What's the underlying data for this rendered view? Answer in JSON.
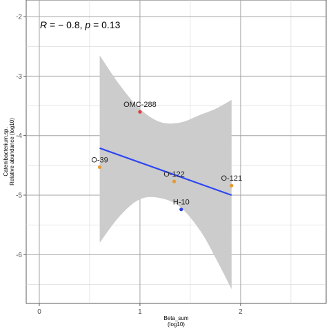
{
  "chart_data": {
    "type": "scatter",
    "xlabel_line1": "Beta_sum",
    "xlabel_line2": "(log10)",
    "ylabel_line1": "Catenibacterium.sp.",
    "ylabel_line2": "Relative abundance (log10)",
    "xlim": [
      -0.13,
      2.85
    ],
    "ylim": [
      -6.82,
      -1.72
    ],
    "x_ticks": [
      0,
      1,
      2
    ],
    "x_tick_labels": [
      "0",
      "1",
      "2"
    ],
    "y_ticks": [
      -6,
      -5,
      -4,
      -3,
      -2
    ],
    "y_tick_labels": [
      "-6",
      "-5",
      "-4",
      "-3",
      "-2"
    ],
    "x_minor_ticks": [
      0.5,
      1.5,
      2.5
    ],
    "y_minor_ticks": [
      -6.5,
      -5.5,
      -4.5,
      -3.5,
      -2.5
    ],
    "grid": true,
    "annotation": {
      "r_symbol": "R",
      "r_text": " = − 0.8, ",
      "p_symbol": "p",
      "p_text": " = 0.13"
    },
    "points": [
      {
        "label": "OMC-288",
        "x": 1.0,
        "y": -3.6,
        "color": "#e03a3a"
      },
      {
        "label": "O-39",
        "x": 0.6,
        "y": -4.53,
        "color": "#e69a2e"
      },
      {
        "label": "O-122",
        "x": 1.34,
        "y": -4.77,
        "color": "#e69a2e"
      },
      {
        "label": "O-121",
        "x": 1.91,
        "y": -4.84,
        "color": "#e69a2e"
      },
      {
        "label": "H-10",
        "x": 1.41,
        "y": -5.24,
        "color": "#2a3ee8"
      }
    ],
    "fit_line": {
      "color": "#2e46f2",
      "x": [
        0.6,
        1.91
      ],
      "y": [
        -4.21,
        -5.0
      ]
    },
    "confidence_band": {
      "color": "#cccccc",
      "x": [
        0.6,
        0.8,
        1.0,
        1.2,
        1.4,
        1.6,
        1.75,
        1.91
      ],
      "upper": [
        -2.65,
        -3.15,
        -3.55,
        -3.77,
        -3.78,
        -3.65,
        -3.55,
        -3.4
      ],
      "lower": [
        -5.8,
        -5.35,
        -5.07,
        -5.05,
        -5.2,
        -5.6,
        -6.05,
        -6.58
      ]
    }
  }
}
